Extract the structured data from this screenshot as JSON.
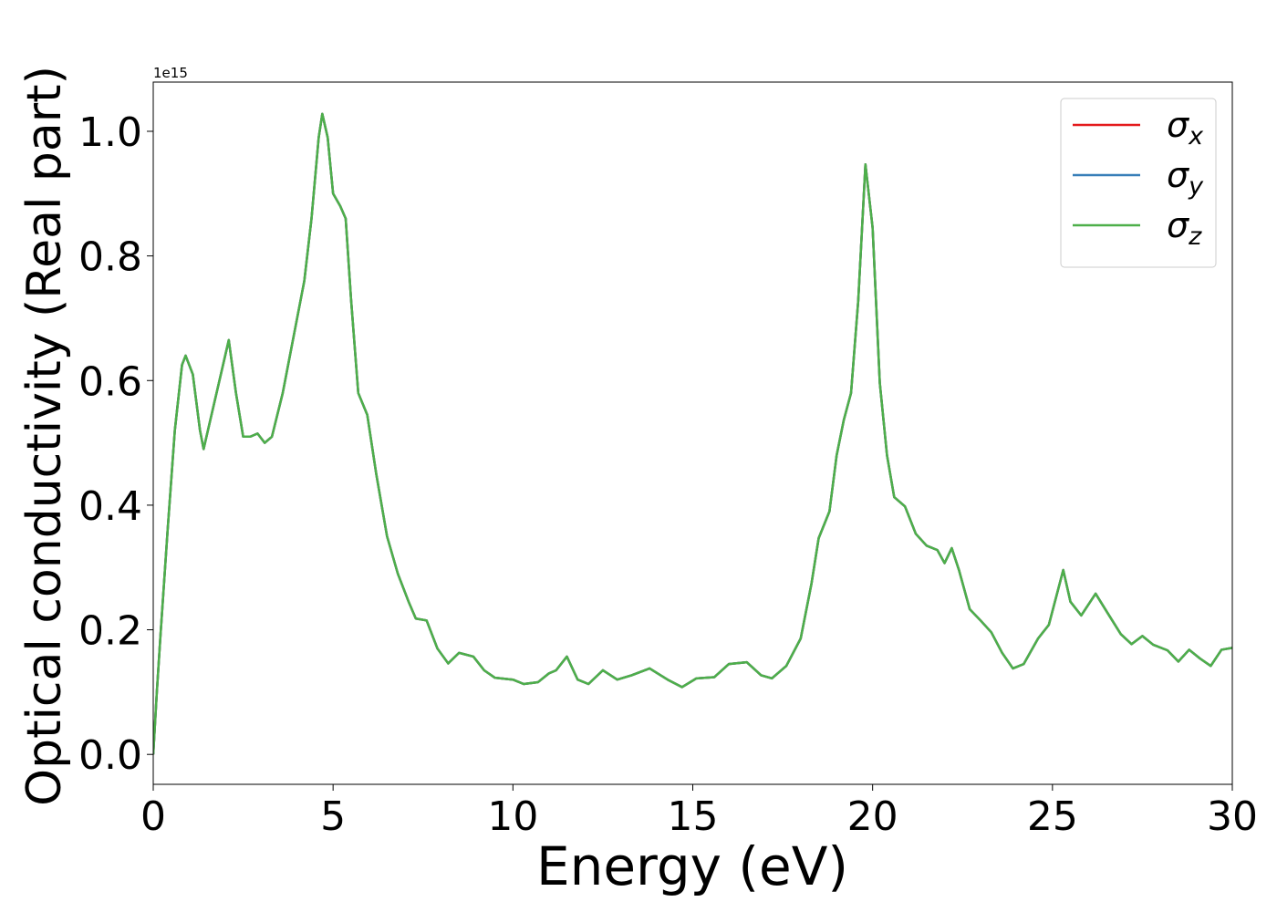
{
  "chart_data": {
    "type": "line",
    "xlabel": "Energy (eV)",
    "ylabel": "Optical conductivity (Real part)",
    "y_offset_label": "1e15",
    "x": [
      0,
      0.1,
      0.2,
      0.4,
      0.6,
      0.8,
      0.9,
      1.1,
      1.3,
      1.4,
      1.6,
      1.8,
      2.0,
      2.1,
      2.3,
      2.5,
      2.7,
      2.9,
      3.1,
      3.3,
      3.6,
      3.9,
      4.2,
      4.4,
      4.6,
      4.7,
      4.85,
      5.0,
      5.2,
      5.35,
      5.5,
      5.7,
      5.95,
      6.2,
      6.5,
      6.8,
      7.1,
      7.3,
      7.6,
      7.9,
      8.2,
      8.5,
      8.9,
      9.2,
      9.5,
      10.0,
      10.3,
      10.7,
      11.0,
      11.2,
      11.5,
      11.8,
      12.1,
      12.5,
      12.9,
      13.3,
      13.8,
      14.3,
      14.7,
      15.1,
      15.6,
      16.0,
      16.5,
      16.9,
      17.2,
      17.6,
      18.0,
      18.3,
      18.5,
      18.8,
      19.0,
      19.2,
      19.4,
      19.6,
      19.8,
      20.0,
      20.2,
      20.4,
      20.6,
      20.9,
      21.2,
      21.5,
      21.8,
      22.0,
      22.2,
      22.4,
      22.7,
      23.0,
      23.3,
      23.6,
      23.9,
      24.2,
      24.6,
      24.9,
      25.3,
      25.5,
      25.8,
      26.2,
      26.5,
      26.9,
      27.2,
      27.5,
      27.8,
      28.2,
      28.5,
      28.8,
      29.1,
      29.4,
      29.7,
      30.0
    ],
    "series": [
      {
        "name": "σx",
        "color": "#e41a1c",
        "values": [
          0,
          0.1,
          0.19,
          0.36,
          0.52,
          0.625,
          0.64,
          0.61,
          0.52,
          0.49,
          0.54,
          0.59,
          0.64,
          0.665,
          0.58,
          0.51,
          0.51,
          0.515,
          0.5,
          0.51,
          0.58,
          0.67,
          0.76,
          0.86,
          0.99,
          1.028,
          0.99,
          0.9,
          0.88,
          0.86,
          0.73,
          0.58,
          0.545,
          0.45,
          0.35,
          0.29,
          0.245,
          0.218,
          0.215,
          0.17,
          0.146,
          0.163,
          0.157,
          0.135,
          0.123,
          0.12,
          0.113,
          0.116,
          0.13,
          0.135,
          0.157,
          0.12,
          0.113,
          0.135,
          0.12,
          0.127,
          0.138,
          0.12,
          0.108,
          0.122,
          0.124,
          0.145,
          0.148,
          0.127,
          0.122,
          0.142,
          0.186,
          0.274,
          0.347,
          0.39,
          0.48,
          0.537,
          0.58,
          0.728,
          0.947,
          0.845,
          0.596,
          0.48,
          0.413,
          0.398,
          0.354,
          0.335,
          0.328,
          0.307,
          0.331,
          0.296,
          0.233,
          0.215,
          0.196,
          0.163,
          0.138,
          0.145,
          0.186,
          0.208,
          0.296,
          0.245,
          0.223,
          0.258,
          0.23,
          0.193,
          0.177,
          0.19,
          0.176,
          0.167,
          0.149,
          0.168,
          0.154,
          0.142,
          0.168,
          0.171
        ]
      },
      {
        "name": "σy",
        "color": "#377eb8",
        "values": [
          0,
          0.1,
          0.19,
          0.36,
          0.52,
          0.625,
          0.64,
          0.61,
          0.52,
          0.49,
          0.54,
          0.59,
          0.64,
          0.665,
          0.58,
          0.51,
          0.51,
          0.515,
          0.5,
          0.51,
          0.58,
          0.67,
          0.76,
          0.86,
          0.99,
          1.028,
          0.99,
          0.9,
          0.88,
          0.86,
          0.73,
          0.58,
          0.545,
          0.45,
          0.35,
          0.29,
          0.245,
          0.218,
          0.215,
          0.17,
          0.146,
          0.163,
          0.157,
          0.135,
          0.123,
          0.12,
          0.113,
          0.116,
          0.13,
          0.135,
          0.157,
          0.12,
          0.113,
          0.135,
          0.12,
          0.127,
          0.138,
          0.12,
          0.108,
          0.122,
          0.124,
          0.145,
          0.148,
          0.127,
          0.122,
          0.142,
          0.186,
          0.274,
          0.347,
          0.39,
          0.48,
          0.537,
          0.58,
          0.728,
          0.947,
          0.845,
          0.596,
          0.48,
          0.413,
          0.398,
          0.354,
          0.335,
          0.328,
          0.307,
          0.331,
          0.296,
          0.233,
          0.215,
          0.196,
          0.163,
          0.138,
          0.145,
          0.186,
          0.208,
          0.296,
          0.245,
          0.223,
          0.258,
          0.23,
          0.193,
          0.177,
          0.19,
          0.176,
          0.167,
          0.149,
          0.168,
          0.154,
          0.142,
          0.168,
          0.171
        ]
      },
      {
        "name": "σz",
        "color": "#4daf4a",
        "values": [
          0,
          0.1,
          0.19,
          0.36,
          0.52,
          0.625,
          0.64,
          0.61,
          0.52,
          0.49,
          0.54,
          0.59,
          0.64,
          0.665,
          0.58,
          0.51,
          0.51,
          0.515,
          0.5,
          0.51,
          0.58,
          0.67,
          0.76,
          0.86,
          0.99,
          1.028,
          0.99,
          0.9,
          0.88,
          0.86,
          0.73,
          0.58,
          0.545,
          0.45,
          0.35,
          0.29,
          0.245,
          0.218,
          0.215,
          0.17,
          0.146,
          0.163,
          0.157,
          0.135,
          0.123,
          0.12,
          0.113,
          0.116,
          0.13,
          0.135,
          0.157,
          0.12,
          0.113,
          0.135,
          0.12,
          0.127,
          0.138,
          0.12,
          0.108,
          0.122,
          0.124,
          0.145,
          0.148,
          0.127,
          0.122,
          0.142,
          0.186,
          0.274,
          0.347,
          0.39,
          0.48,
          0.537,
          0.58,
          0.728,
          0.947,
          0.845,
          0.596,
          0.48,
          0.413,
          0.398,
          0.354,
          0.335,
          0.328,
          0.307,
          0.331,
          0.296,
          0.233,
          0.215,
          0.196,
          0.163,
          0.138,
          0.145,
          0.186,
          0.208,
          0.296,
          0.245,
          0.223,
          0.258,
          0.23,
          0.193,
          0.177,
          0.19,
          0.176,
          0.167,
          0.149,
          0.168,
          0.154,
          0.142,
          0.168,
          0.171
        ]
      }
    ],
    "xlim": [
      0,
      30
    ],
    "xticks": [
      0,
      5,
      10,
      15,
      20,
      25,
      30
    ],
    "ylim": [
      -0.048,
      1.079
    ],
    "yticks": [
      {
        "value": 0,
        "label": "0.0"
      },
      0.2,
      0.4,
      0.6,
      0.8,
      {
        "value": 1,
        "label": "1.0"
      }
    ],
    "grid": false,
    "legend": "upper right"
  }
}
